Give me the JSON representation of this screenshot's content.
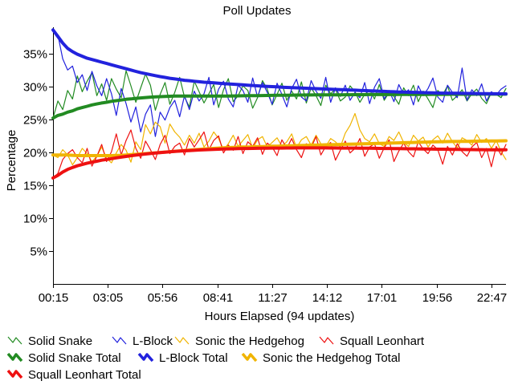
{
  "chart_data": {
    "type": "line",
    "title": "Poll Updates",
    "xlabel": "Hours Elapsed (94 updates)",
    "ylabel": "Percentage",
    "ylim": [
      0,
      39
    ],
    "yticks": [
      5,
      10,
      15,
      20,
      25,
      30,
      35
    ],
    "ytick_labels": [
      "5%",
      "10%",
      "15%",
      "20%",
      "25%",
      "30%",
      "35%"
    ],
    "xlim": [
      0,
      93
    ],
    "xtick_positions": [
      0,
      11.25,
      22.5,
      33.75,
      45,
      56.25,
      67.5,
      78.75,
      90
    ],
    "xtick_labels": [
      "00:15",
      "03:05",
      "05:56",
      "08:41",
      "11:27",
      "14:12",
      "17:01",
      "19:56",
      "22:47"
    ],
    "grid": false,
    "legend_position": "bottom",
    "series": [
      {
        "name": "Solid Snake",
        "color": "#228b22",
        "style": "thin",
        "total": false,
        "values": [
          25.2,
          27.8,
          26.5,
          29.4,
          28.1,
          31.6,
          29.2,
          30.8,
          32.1,
          28.6,
          30.4,
          27.9,
          31.2,
          29.6,
          28.3,
          32.4,
          30.1,
          27.6,
          29.8,
          31.9,
          30.2,
          26.4,
          28.8,
          30.6,
          27.3,
          29.1,
          31.4,
          28.4,
          26.9,
          30.8,
          29.2,
          27.5,
          28.9,
          30.3,
          26.8,
          29.5,
          31.2,
          27.7,
          28.6,
          30.1,
          29.4,
          26.7,
          28.3,
          30.9,
          29.6,
          27.2,
          28.8,
          30.5,
          27.9,
          29.3,
          28.1,
          30.7,
          27.5,
          29.8,
          28.6,
          27.1,
          30.2,
          28.9,
          29.6,
          27.8,
          28.4,
          30.1,
          29.2,
          27.6,
          28.8,
          29.5,
          28.1,
          30.3,
          27.9,
          29.1,
          28.5,
          27.3,
          29.8,
          28.6,
          30.2,
          27.7,
          29.3,
          28.1,
          26.8,
          29.4,
          28.7,
          30.1,
          27.9,
          28.6,
          29.5,
          27.8,
          28.9,
          29.6,
          28.2,
          27.4,
          29.1,
          28.8,
          28.3,
          29.7
        ]
      },
      {
        "name": "L-Block",
        "color": "#2222dd",
        "style": "thin",
        "total": false,
        "values": [
          38.6,
          37.8,
          34.2,
          32.5,
          33.1,
          30.6,
          31.8,
          29.4,
          32.3,
          30.1,
          28.6,
          31.2,
          28.9,
          25.6,
          29.7,
          27.4,
          24.6,
          26.9,
          23.1,
          25.8,
          27.2,
          22.4,
          26.1,
          24.9,
          26.8,
          27.9,
          25.4,
          28.6,
          26.5,
          29.3,
          27.8,
          28.9,
          31.4,
          27.2,
          29.6,
          30.8,
          28.1,
          26.9,
          30.2,
          29.4,
          27.6,
          31.3,
          28.4,
          30.6,
          29.1,
          27.3,
          30.5,
          28.8,
          26.9,
          29.7,
          31.1,
          28.4,
          27.8,
          30.9,
          29.3,
          28.2,
          31.4,
          27.6,
          29.8,
          28.5,
          30.2,
          27.9,
          29.1,
          28.3,
          30.6,
          27.4,
          29.9,
          31.2,
          28.1,
          29.4,
          27.7,
          30.3,
          28.8,
          29.5,
          27.2,
          30.1,
          28.6,
          29.7,
          31.3,
          28.4,
          27.6,
          30.2,
          29.1,
          28.3,
          32.8,
          27.9,
          29.5,
          28.6,
          30.4,
          27.8,
          29.2,
          28.7,
          29.6,
          30.1
        ]
      },
      {
        "name": "Sonic the Hedgehog",
        "color": "#f0b400",
        "style": "thin",
        "total": false,
        "values": [
          19.6,
          19.2,
          20.4,
          19.6,
          18.1,
          19.2,
          20.6,
          19.8,
          18.6,
          19.4,
          20.8,
          19.1,
          18.4,
          19.9,
          21.2,
          20.3,
          18.5,
          21.6,
          20.4,
          24.2,
          22.8,
          24.6,
          23.9,
          21.4,
          24.3,
          23.1,
          22.3,
          21.1,
          22.6,
          21.4,
          22.9,
          20.8,
          21.7,
          23.1,
          22.1,
          20.4,
          21.3,
          22.6,
          20.9,
          21.8,
          22.7,
          20.6,
          21.9,
          22.4,
          20.8,
          21.5,
          22.2,
          20.9,
          21.6,
          22.8,
          20.7,
          21.9,
          22.4,
          21.1,
          22.6,
          21.3,
          20.9,
          22.1,
          21.6,
          20.8,
          22.9,
          24.1,
          25.9,
          23.4,
          22.1,
          21.6,
          22.8,
          21.3,
          20.9,
          22.4,
          21.8,
          23.1,
          21.5,
          20.9,
          22.6,
          21.7,
          22.3,
          20.8,
          21.9,
          22.5,
          21.4,
          22.9,
          21.6,
          20.7,
          22.2,
          21.8,
          21.1,
          22.7,
          21.5,
          22.1,
          20.6,
          21.8,
          20.1,
          18.9
        ]
      },
      {
        "name": "Squall Leonhart",
        "color": "#ee1111",
        "style": "thin",
        "total": false,
        "values": [
          16.1,
          16.8,
          18.9,
          19.8,
          20.4,
          19.2,
          18.4,
          20.6,
          17.9,
          19.4,
          21.2,
          18.6,
          20.1,
          22.8,
          19.6,
          21.8,
          23.4,
          20.6,
          19.1,
          21.7,
          20.4,
          18.9,
          21.2,
          22.6,
          19.8,
          20.9,
          21.4,
          19.6,
          22.1,
          20.8,
          21.9,
          23.1,
          20.4,
          21.8,
          22.5,
          19.9,
          21.1,
          20.3,
          22.4,
          19.8,
          21.6,
          20.9,
          22.2,
          19.7,
          21.4,
          20.8,
          19.5,
          21.9,
          20.6,
          22.1,
          20.4,
          19.2,
          21.3,
          20.7,
          22.4,
          19.6,
          20.9,
          21.5,
          18.8,
          20.3,
          21.7,
          19.9,
          20.6,
          22.1,
          19.4,
          20.8,
          21.3,
          19.1,
          20.7,
          21.9,
          18.6,
          20.2,
          21.4,
          20.1,
          19.3,
          21.6,
          20.5,
          19.8,
          21.1,
          20.4,
          18.2,
          20.9,
          19.6,
          21.3,
          20.1,
          19.4,
          20.8,
          21.5,
          19.2,
          20.6,
          17.8,
          20.9,
          19.6,
          21.2
        ]
      },
      {
        "name": "Solid Snake Total",
        "color": "#228b22",
        "style": "thick",
        "total": true,
        "values": [
          25.2,
          25.6,
          25.8,
          26.1,
          26.3,
          26.6,
          26.8,
          27.0,
          27.2,
          27.35,
          27.5,
          27.6,
          27.75,
          27.85,
          27.95,
          28.05,
          28.12,
          28.2,
          28.26,
          28.32,
          28.38,
          28.42,
          28.46,
          28.5,
          28.52,
          28.54,
          28.55,
          28.56,
          28.56,
          28.56,
          28.56,
          28.56,
          28.56,
          28.56,
          28.56,
          28.56,
          28.56,
          28.57,
          28.58,
          28.59,
          28.6,
          28.61,
          28.62,
          28.63,
          28.64,
          28.65,
          28.66,
          28.67,
          28.68,
          28.69,
          28.7,
          28.7,
          28.71,
          28.71,
          28.72,
          28.72,
          28.73,
          28.73,
          28.74,
          28.74,
          28.75,
          28.75,
          28.76,
          28.76,
          28.76,
          28.77,
          28.77,
          28.77,
          28.78,
          28.78,
          28.78,
          28.79,
          28.79,
          28.79,
          28.8,
          28.8,
          28.8,
          28.8,
          28.81,
          28.81,
          28.81,
          28.81,
          28.82,
          28.82,
          28.82,
          28.82,
          28.82,
          28.83,
          28.83,
          28.83,
          28.83,
          28.83,
          28.84,
          28.84
        ]
      },
      {
        "name": "L-Block Total",
        "color": "#2222dd",
        "style": "thick",
        "total": true,
        "values": [
          38.6,
          37.6,
          36.6,
          35.8,
          35.3,
          34.9,
          34.6,
          34.3,
          34.1,
          33.9,
          33.7,
          33.5,
          33.3,
          33.1,
          32.9,
          32.7,
          32.5,
          32.3,
          32.1,
          31.95,
          31.8,
          31.65,
          31.5,
          31.38,
          31.25,
          31.15,
          31.05,
          30.95,
          30.88,
          30.8,
          30.72,
          30.65,
          30.6,
          30.55,
          30.5,
          30.45,
          30.4,
          30.35,
          30.3,
          30.25,
          30.2,
          30.15,
          30.1,
          30.06,
          30.02,
          29.98,
          29.94,
          29.9,
          29.86,
          29.83,
          29.8,
          29.77,
          29.74,
          29.71,
          29.68,
          29.65,
          29.62,
          29.59,
          29.56,
          29.53,
          29.5,
          29.47,
          29.44,
          29.41,
          29.38,
          29.35,
          29.32,
          29.29,
          29.26,
          29.23,
          29.2,
          29.17,
          29.15,
          29.13,
          29.11,
          29.09,
          29.07,
          29.05,
          29.03,
          29.01,
          29.0,
          28.99,
          28.98,
          28.97,
          28.96,
          28.95,
          28.94,
          28.93,
          28.92,
          28.91,
          28.9,
          28.9,
          28.89,
          28.89
        ]
      },
      {
        "name": "Sonic the Hedgehog Total",
        "color": "#f0b400",
        "style": "thick",
        "total": true,
        "values": [
          19.6,
          19.6,
          19.6,
          19.6,
          19.55,
          19.5,
          19.5,
          19.5,
          19.5,
          19.5,
          19.5,
          19.5,
          19.5,
          19.52,
          19.55,
          19.6,
          19.65,
          19.7,
          19.75,
          19.8,
          19.86,
          19.92,
          19.98,
          20.04,
          20.1,
          20.16,
          20.22,
          20.28,
          20.34,
          20.4,
          20.45,
          20.5,
          20.55,
          20.6,
          20.64,
          20.68,
          20.72,
          20.75,
          20.78,
          20.8,
          20.82,
          20.84,
          20.86,
          20.88,
          20.9,
          20.92,
          20.94,
          20.96,
          20.98,
          21.0,
          21.02,
          21.04,
          21.06,
          21.08,
          21.1,
          21.12,
          21.14,
          21.16,
          21.18,
          21.2,
          21.22,
          21.24,
          21.26,
          21.28,
          21.3,
          21.32,
          21.34,
          21.36,
          21.38,
          21.4,
          21.42,
          21.44,
          21.46,
          21.48,
          21.5,
          21.52,
          21.54,
          21.56,
          21.58,
          21.6,
          21.62,
          21.63,
          21.64,
          21.65,
          21.66,
          21.67,
          21.68,
          21.69,
          21.7,
          21.71,
          21.72,
          21.73,
          21.74,
          21.75
        ]
      },
      {
        "name": "Squall Leonhart Total",
        "color": "#ee1111",
        "style": "thick",
        "total": true,
        "values": [
          16.1,
          16.5,
          17.0,
          17.4,
          17.7,
          17.95,
          18.15,
          18.35,
          18.5,
          18.65,
          18.8,
          18.92,
          19.04,
          19.16,
          19.27,
          19.38,
          19.48,
          19.57,
          19.66,
          19.74,
          19.82,
          19.89,
          19.96,
          20.02,
          20.08,
          20.13,
          20.18,
          20.23,
          20.27,
          20.31,
          20.35,
          20.39,
          20.42,
          20.45,
          20.48,
          20.5,
          20.52,
          20.54,
          20.56,
          20.58,
          20.59,
          20.6,
          20.61,
          20.62,
          20.63,
          20.64,
          20.65,
          20.65,
          20.66,
          20.66,
          20.67,
          20.67,
          20.67,
          20.67,
          20.67,
          20.67,
          20.67,
          20.66,
          20.66,
          20.65,
          20.65,
          20.64,
          20.64,
          20.63,
          20.63,
          20.62,
          20.61,
          20.6,
          20.59,
          20.58,
          20.57,
          20.56,
          20.55,
          20.54,
          20.53,
          20.52,
          20.51,
          20.5,
          20.49,
          20.48,
          20.47,
          20.46,
          20.45,
          20.44,
          20.43,
          20.42,
          20.41,
          20.4,
          20.4,
          20.39,
          20.39,
          20.38,
          20.38,
          20.38
        ]
      }
    ]
  }
}
